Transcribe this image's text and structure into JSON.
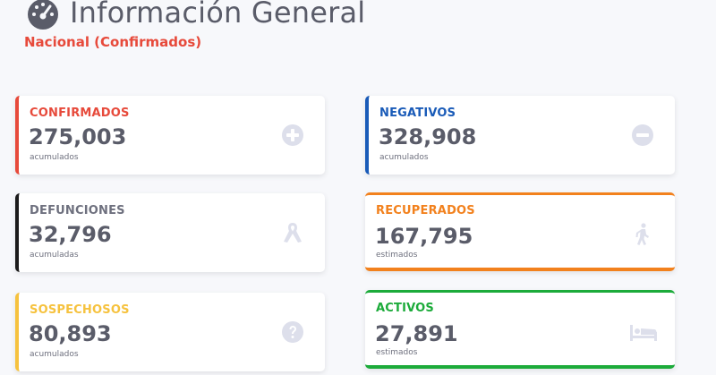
{
  "header": {
    "title": "Información General",
    "subtitle": "Nacional (Confirmados)",
    "icon": "gauge-icon"
  },
  "cards": {
    "confirmados": {
      "label": "CONFIRMADOS",
      "value": "275,003",
      "note": "acumulados",
      "color": "#e74a3b",
      "icon": "plus-circle-icon"
    },
    "negativos": {
      "label": "NEGATIVOS",
      "value": "328,908",
      "note": "acumulados",
      "color": "#1a5bb8",
      "icon": "minus-circle-icon"
    },
    "defunciones": {
      "label": "DEFUNCIONES",
      "value": "32,796",
      "note": "acumuladas",
      "color": "#1b1b1b",
      "icon": "ribbon-icon"
    },
    "recuperados": {
      "label": "RECUPERADOS",
      "value": "167,795",
      "note": "estimados",
      "color": "#f2811d",
      "icon": "walking-icon"
    },
    "sospechosos": {
      "label": "SOSPECHOSOS",
      "value": "80,893",
      "note": "acumulados",
      "color": "#f6c23e",
      "icon": "question-circle-icon"
    },
    "activos": {
      "label": "ACTIVOS",
      "value": "27,891",
      "note": "estimados",
      "color": "#1cab3a",
      "icon": "bed-icon"
    }
  },
  "colors": {
    "label_gray": "#6e707e",
    "icon_gray": "#dddfeb"
  }
}
